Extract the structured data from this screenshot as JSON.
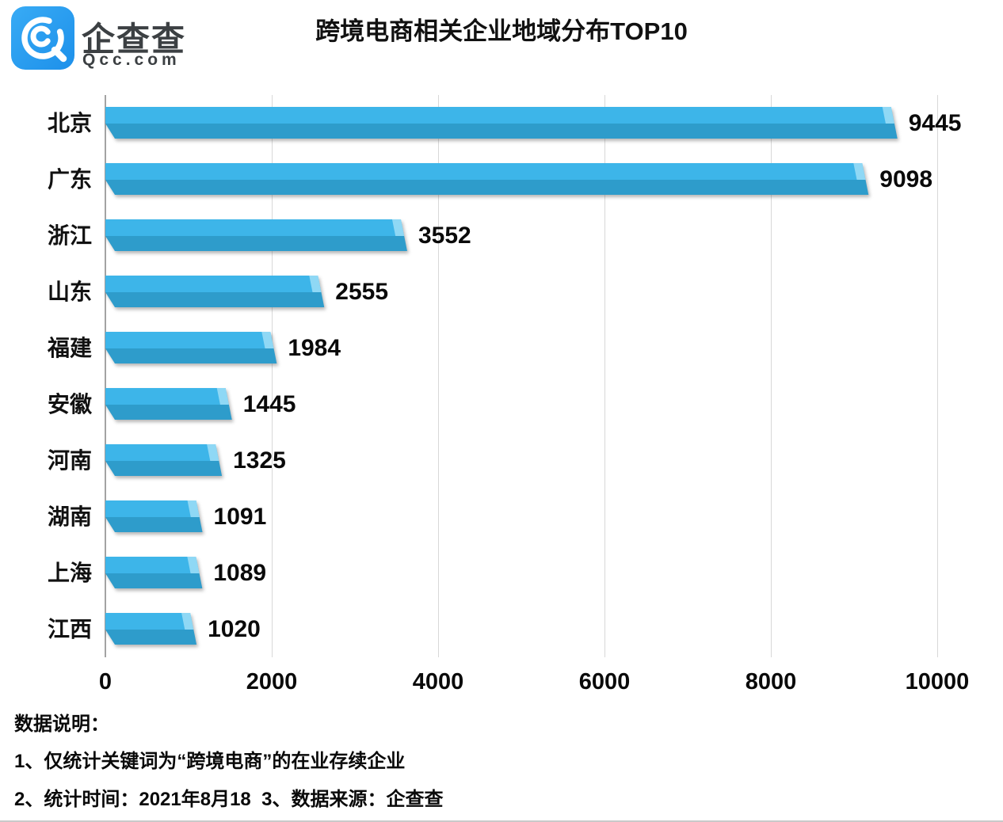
{
  "header": {
    "logo_name": "企查查",
    "logo_domain": "Qcc.com",
    "title": "跨境电商相关企业地域分布TOP10"
  },
  "chart_data": {
    "type": "bar",
    "orientation": "horizontal",
    "title": "跨境电商相关企业地域分布TOP10",
    "categories": [
      "北京",
      "广东",
      "浙江",
      "山东",
      "福建",
      "安徽",
      "河南",
      "湖南",
      "上海",
      "江西"
    ],
    "values": [
      9445,
      9098,
      3552,
      2555,
      1984,
      1445,
      1325,
      1091,
      1089,
      1020
    ],
    "xlim": [
      0,
      10000
    ],
    "x_ticks": [
      0,
      2000,
      4000,
      6000,
      8000,
      10000
    ],
    "grid": "vertical-only",
    "legend": "none",
    "bar_color_top": "#3db5e9",
    "bar_color_bottom": "#2e9ccb",
    "bar_color_bevel": "#8fd8f5",
    "value_labels": "outside-end"
  },
  "footer": {
    "heading": "数据说明：",
    "note1": "1、仅统计关键词为“跨境电商”的在业存续企业",
    "note2": "2、统计时间：2021年8月18  3、数据来源：企查查"
  },
  "colors": {
    "logo_blue": "#2aa1f2",
    "gridline": "#d8d8d8",
    "axis": "#a3a3a3"
  }
}
